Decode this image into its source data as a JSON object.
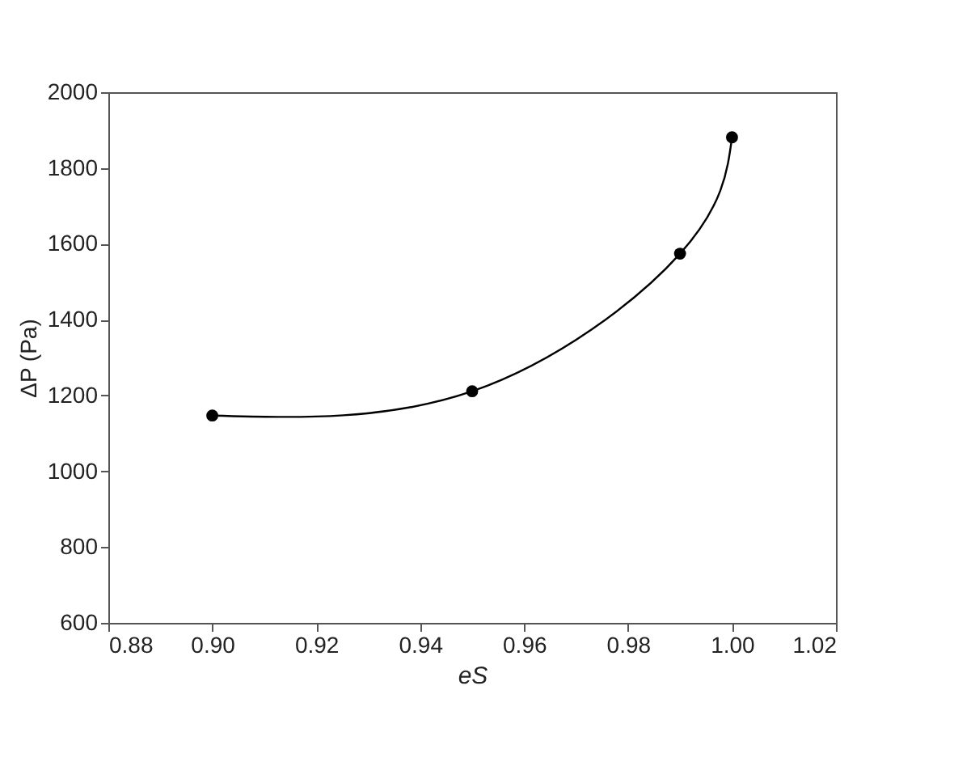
{
  "chart_data": {
    "type": "line",
    "xlabel": "eS",
    "ylabel": "ΔP (Pa)",
    "x": [
      0.9,
      0.95,
      0.99,
      1.0
    ],
    "series": [
      {
        "color": "#000000",
        "values": [
          1147,
          1211,
          1574,
          1881
        ]
      }
    ],
    "marker": "circle",
    "line_style": "solid",
    "xlim": [
      0.88,
      1.02
    ],
    "xticks": [
      0.88,
      0.92,
      0.94,
      0.96,
      0.98,
      1.02,
      {
        "value": 0.9,
        "label": "0.90"
      },
      {
        "value": 1,
        "label": "1.00"
      }
    ],
    "ylim": [
      600,
      2000
    ],
    "yticks": [
      600,
      800,
      1000,
      1200,
      1400,
      1600,
      1800,
      2000
    ],
    "grid": false
  }
}
